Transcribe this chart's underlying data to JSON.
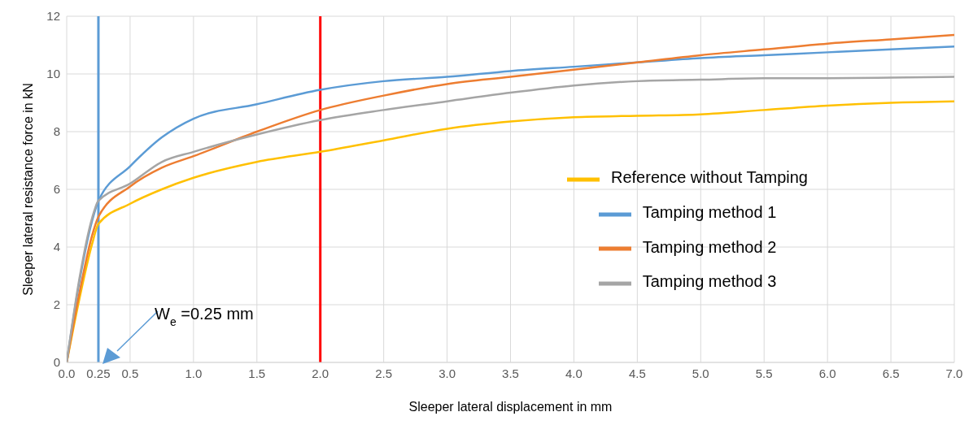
{
  "chart_data": {
    "type": "line",
    "xlabel": "Sleeper lateral displacement in mm",
    "ylabel": "Sleeper lateral resistance force  in kN",
    "xlim": [
      0,
      7
    ],
    "xticks": [
      {
        "value": 0,
        "label": "0.0"
      },
      0.25,
      0.5,
      {
        "value": 1,
        "label": "1.0"
      },
      1.5,
      {
        "value": 2,
        "label": "2.0"
      },
      2.5,
      {
        "value": 3,
        "label": "3.0"
      },
      3.5,
      {
        "value": 4,
        "label": "4.0"
      },
      4.5,
      {
        "value": 5,
        "label": "5.0"
      },
      5.5,
      {
        "value": 6,
        "label": "6.0"
      },
      6.5,
      {
        "value": 7,
        "label": "7.0"
      }
    ],
    "ylim": [
      0,
      12
    ],
    "yticks": [
      0,
      2,
      4,
      6,
      8,
      10,
      12
    ],
    "grid": true,
    "legend": "right",
    "marker": "none",
    "line_style": "solid",
    "x": [
      0,
      0.1,
      0.2,
      0.25,
      0.5,
      0.75,
      1,
      1.5,
      2,
      2.5,
      3,
      3.5,
      4,
      4.5,
      5,
      5.5,
      6,
      6.5,
      7
    ],
    "series": [
      {
        "name": "Reference without Tamping",
        "color": "#ffc000",
        "values": [
          0,
          2.2,
          4.1,
          4.8,
          5.5,
          6.0,
          6.4,
          6.95,
          7.3,
          7.7,
          8.1,
          8.35,
          8.5,
          8.55,
          8.6,
          8.75,
          8.9,
          9.0,
          9.05
        ]
      },
      {
        "name": "Tamping method 1",
        "color": "#5b9bd5",
        "values": [
          0,
          2.8,
          4.9,
          5.6,
          6.8,
          7.8,
          8.45,
          8.95,
          9.45,
          9.75,
          9.9,
          10.1,
          10.25,
          10.4,
          10.55,
          10.65,
          10.75,
          10.85,
          10.95
        ]
      },
      {
        "name": "Tamping method 2",
        "color": "#ed7d31",
        "values": [
          0,
          2.4,
          4.4,
          5.05,
          6.1,
          6.75,
          7.15,
          8.0,
          8.75,
          9.25,
          9.65,
          9.9,
          10.15,
          10.4,
          10.65,
          10.85,
          11.05,
          11.2,
          11.35
        ]
      },
      {
        "name": "Tamping method 3",
        "color": "#a5a5a5",
        "values": [
          0,
          2.9,
          5.0,
          5.6,
          6.2,
          6.95,
          7.3,
          7.9,
          8.4,
          8.75,
          9.05,
          9.35,
          9.6,
          9.75,
          9.8,
          9.85,
          9.85,
          9.87,
          9.9
        ]
      }
    ],
    "ref_lines": [
      {
        "axis": "x",
        "value": 0.25,
        "color": "#5b9bd5"
      },
      {
        "axis": "x",
        "value": 2,
        "color": "#ff0000"
      }
    ],
    "annotations": [
      "W$_{e}$ =0.25 mm"
    ]
  }
}
